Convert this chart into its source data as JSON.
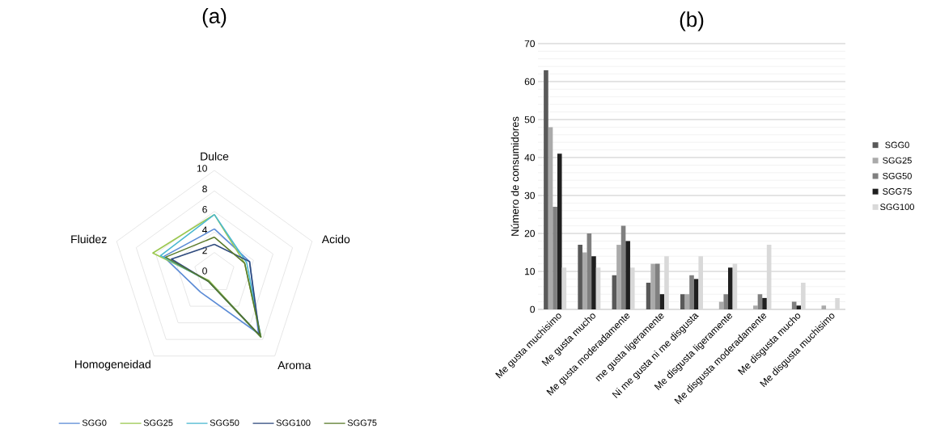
{
  "chart_data": [
    {
      "type": "radar",
      "title": "(a)",
      "categories": [
        "Dulce",
        "Acido",
        "Aroma",
        "Homogeneidad",
        "Fluidez"
      ],
      "ylim": [
        0,
        10
      ],
      "yticks": [
        0,
        2,
        4,
        6,
        8,
        10
      ],
      "grid": true,
      "legend": "bottom",
      "series": [
        {
          "name": "SGG0",
          "color": "#5b8bd6",
          "values": [
            4.3,
            3.6,
            7.3,
            2.3,
            5.2
          ]
        },
        {
          "name": "SGG25",
          "color": "#9bc850",
          "values": [
            5.7,
            3.1,
            7.7,
            0.9,
            6.3
          ]
        },
        {
          "name": "SGG50",
          "color": "#4bb8d0",
          "values": [
            5.7,
            3.3,
            7.7,
            1.0,
            5.5
          ]
        },
        {
          "name": "SGG100",
          "color": "#2e4a7d",
          "values": [
            2.8,
            3.6,
            7.5,
            1.0,
            4.4
          ]
        },
        {
          "name": "SGG75",
          "color": "#5a7a2a",
          "values": [
            3.5,
            3.1,
            7.7,
            1.0,
            5.0
          ]
        }
      ]
    },
    {
      "type": "bar",
      "title": "(b)",
      "ylabel": "Número de consumidores",
      "categories": [
        "Me gusta muchisimo",
        "Me gusta mucho",
        "Me gusta moderadamente",
        "me gusta ligeramente",
        "Ni me gusta ni me disgusta",
        "Me disgusta ligeramente",
        "Me disgusta moderadamente",
        "Me disgusta mucho",
        "Me disgusta muchisimo"
      ],
      "ylim": [
        0,
        70
      ],
      "yticks": [
        0,
        10,
        20,
        30,
        40,
        50,
        60,
        70
      ],
      "grid": "y",
      "legend": "right",
      "series": [
        {
          "name": "SGG0",
          "color": "#595959",
          "values": [
            63,
            17,
            9,
            7,
            4,
            0,
            0,
            0,
            0
          ]
        },
        {
          "name": "SGG25",
          "color": "#aaaaaa",
          "values": [
            48,
            15,
            17,
            12,
            4,
            2,
            1,
            0,
            1
          ]
        },
        {
          "name": "SGG50",
          "color": "#808080",
          "values": [
            27,
            20,
            22,
            12,
            9,
            4,
            4,
            2,
            0
          ]
        },
        {
          "name": "SGG75",
          "color": "#1f1f1f",
          "values": [
            41,
            14,
            18,
            4,
            8,
            11,
            3,
            1,
            0
          ]
        },
        {
          "name": "SGG100",
          "color": "#d9d9d9",
          "values": [
            11,
            11,
            11,
            14,
            14,
            12,
            17,
            7,
            3
          ]
        }
      ]
    }
  ]
}
